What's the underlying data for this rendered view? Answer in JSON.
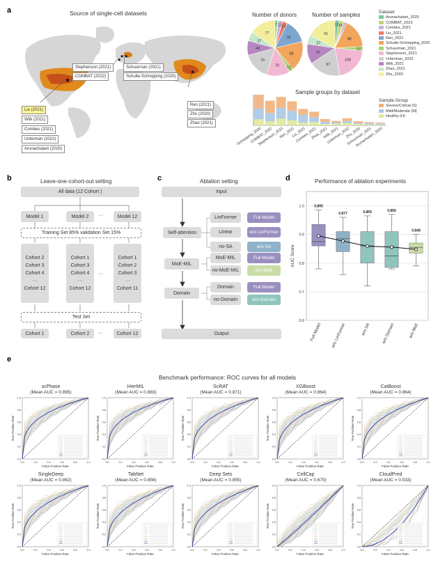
{
  "panel_labels": {
    "a": "a",
    "b": "b",
    "c": "c",
    "d": "d",
    "e": "e"
  },
  "panel_a": {
    "map_title": "Source of single-cell datasets",
    "map_boxes": {
      "us": [
        "Liu (2021)",
        "Wilk (2021)",
        "Combes (2021)",
        "Unterman (2022)",
        "Arunachalam (2020)"
      ],
      "eu_left": [
        "Stephenson (2021)",
        "COMBAT (2022)"
      ],
      "eu_right": [
        "Schuurman (2021)",
        "Schulte-Schrepping (2020)"
      ],
      "cn": [
        "Ren (2021)",
        "Zhu (2020)",
        "Zhao (2021)"
      ]
    },
    "donors_title": "Number of donors",
    "samples_title": "Number of samples",
    "legend_title": "Dataset",
    "datasets": [
      {
        "name": "Arunachalam_2020",
        "color": "#76c7a3"
      },
      {
        "name": "COMBAT_2022",
        "color": "#c9d27a"
      },
      {
        "name": "Combes_2021",
        "color": "#c4b3dd"
      },
      {
        "name": "Liu_2021",
        "color": "#ee7a6b"
      },
      {
        "name": "Ren_2021",
        "color": "#7ea6cf"
      },
      {
        "name": "Schulte-Schrepping_2020",
        "color": "#f3a55c"
      },
      {
        "name": "Schuurman_2021",
        "color": "#a9d36e"
      },
      {
        "name": "Stephenson_2021",
        "color": "#f2b8d3"
      },
      {
        "name": "Unterman_2022",
        "color": "#cfcfcf"
      },
      {
        "name": "Wilk_2021",
        "color": "#b787c1"
      },
      {
        "name": "Zhao_2021",
        "color": "#c6e7ca"
      },
      {
        "name": "Zhu_2020",
        "color": "#f2ee9b"
      }
    ],
    "donors_pie": [
      {
        "label": "7",
        "value": 7
      },
      {
        "label": "",
        "value": 3
      },
      {
        "label": "12",
        "value": 12
      },
      {
        "label": "15",
        "value": 15
      },
      {
        "label": "70",
        "value": 70
      },
      {
        "label": "88",
        "value": 88
      },
      {
        "label": "12",
        "value": 12
      },
      {
        "label": "70",
        "value": 70
      },
      {
        "label": "79",
        "value": 79
      },
      {
        "label": "43",
        "value": 43
      },
      {
        "label": "27",
        "value": 27
      },
      {
        "label": "77",
        "value": 77
      }
    ],
    "samples_pie": [
      {
        "label": "12",
        "value": 12
      },
      {
        "label": "14",
        "value": 14
      },
      {
        "label": "",
        "value": 4
      },
      {
        "label": "",
        "value": 4
      },
      {
        "label": "",
        "value": 4
      },
      {
        "label": "88",
        "value": 88
      },
      {
        "label": "12",
        "value": 12
      },
      {
        "label": "108",
        "value": 108
      },
      {
        "label": "97",
        "value": 97
      },
      {
        "label": "61",
        "value": 61
      },
      {
        "label": "27",
        "value": 27
      },
      {
        "label": "91",
        "value": 91
      }
    ],
    "bar_title": "Sample groups by dataset",
    "bar_legend_title": "Sample Group",
    "groups": [
      {
        "name": "Severe/Critical (S)",
        "color": "#f2b07a"
      },
      {
        "name": "Mild/Moderate (M)",
        "color": "#a8c8e4"
      },
      {
        "name": "Healthy (H)",
        "color": "#dfe99a"
      }
    ],
    "bar_categories": [
      "Schulte-Schrepping_2020",
      "COMBAT_2022",
      "Stephenson_2021",
      "Ren_2021",
      "Liu_2021",
      "Combes_2021",
      "Zhao_2021",
      "Wilk_2021",
      "Unterman_2022",
      "Zhu_2020",
      "Schuurman_2021",
      "Arunachalam_2020"
    ]
  },
  "chart_data": [
    {
      "type": "bar",
      "title": "Sample groups by dataset",
      "categories": [
        "Schulte-Schrepping_2020",
        "COMBAT_2022",
        "Stephenson_2021",
        "Ren_2021",
        "Liu_2021",
        "Combes_2021",
        "Zhao_2021",
        "Wilk_2021",
        "Unterman_2022",
        "Zhu_2020",
        "Schuurman_2021",
        "Arunachalam_2020"
      ],
      "series": [
        {
          "name": "Healthy (H)",
          "values": [
            22,
            15,
            24,
            18,
            10,
            12,
            5,
            6,
            8,
            5,
            3,
            3
          ]
        },
        {
          "name": "Mild/Moderate (M)",
          "values": [
            40,
            30,
            40,
            35,
            28,
            18,
            8,
            4,
            8,
            4,
            5,
            4
          ]
        },
        {
          "name": "Severe/Critical (S)",
          "values": [
            50,
            45,
            40,
            35,
            22,
            20,
            10,
            6,
            10,
            6,
            4,
            3
          ]
        }
      ]
    },
    {
      "type": "box",
      "title": "Performance of ablation experiments",
      "ylabel": "AUC Score",
      "ylim": [
        0.6,
        1.05
      ],
      "yticks": [
        "0.6",
        "0.7",
        "0.8",
        "0.9",
        "1.0"
      ],
      "categories": [
        "Full Model",
        "w/o LinFormer",
        "w/o SA",
        "w/o Domain",
        "w/o MoE"
      ],
      "means": [
        0.895,
        0.877,
        0.859,
        0.856,
        0.848
      ],
      "mean_labels": [
        "0.895",
        "0.877",
        "0.859",
        "0.856",
        "0.848"
      ],
      "colors": [
        "#9b8fc0",
        "#8fb2c9",
        "#8fc5bd",
        "#8fc5bd",
        "#c9dca6"
      ],
      "boxes": [
        {
          "min": 0.78,
          "q1": 0.86,
          "median": 0.875,
          "q3": 0.935,
          "max": 0.985
        },
        {
          "min": 0.76,
          "q1": 0.84,
          "median": 0.885,
          "q3": 0.91,
          "max": 0.96
        },
        {
          "min": 0.72,
          "q1": 0.8,
          "median": 0.86,
          "q3": 0.91,
          "max": 0.965
        },
        {
          "min": 0.78,
          "q1": 0.785,
          "median": 0.825,
          "q3": 0.91,
          "max": 0.97
        },
        {
          "min": 0.79,
          "q1": 0.835,
          "median": 0.855,
          "q3": 0.87,
          "max": 0.9
        }
      ]
    },
    {
      "type": "line",
      "title": "Benchmark performance: ROC curves for all models",
      "xlabel": "False Positive Rate",
      "ylabel": "True Positive Rate",
      "models": [
        {
          "name": "scPhase",
          "auc_label": "(Mean AUC = 0.895)",
          "auc": 0.895
        },
        {
          "name": "HierMIL",
          "auc_label": "(Mean AUC = 0.883)",
          "auc": 0.883
        },
        {
          "name": "ScRAT",
          "auc_label": "(Mean AUC = 0.871)",
          "auc": 0.871
        },
        {
          "name": "XGBoost",
          "auc_label": "(Mean AUC = 0.864)",
          "auc": 0.864
        },
        {
          "name": "CatBoost",
          "auc_label": "(Mean AUC = 0.864)",
          "auc": 0.864
        },
        {
          "name": "SingleDeep",
          "auc_label": "(Mean AUC = 0.862)",
          "auc": 0.862
        },
        {
          "name": "TabNet",
          "auc_label": "(Mean AUC = 0.856)",
          "auc": 0.856
        },
        {
          "name": "Deep Sets",
          "auc_label": "(Mean AUC = 0.855)",
          "auc": 0.855
        },
        {
          "name": "CellCap",
          "auc_label": "(Mean AUC = 0.670)",
          "auc": 0.67
        },
        {
          "name": "CloudPred",
          "auc_label": "(Mean AUC = 0.533)",
          "auc": 0.533
        }
      ],
      "ticks": [
        "0.0",
        "0.2",
        "0.4",
        "0.6",
        "0.8",
        "1.0"
      ]
    }
  ],
  "panel_b": {
    "title": "Leave-one-cohort-out setting",
    "all_data": "All data (12 Cohort )",
    "models": [
      "Model 1",
      "Model 2",
      "···",
      "Model 12"
    ],
    "split": "Training Set  85%   validation Set 15%",
    "cols": [
      [
        "Cohort 2",
        "Cohort 3",
        "Cohort 4",
        "···",
        "Cohort 12"
      ],
      [
        "Cohort 1",
        "Cohort 3",
        "Cohort 4",
        "···",
        "Cohort 12"
      ],
      [
        "Cohort 1",
        "Cohort 2",
        "Cohort 3",
        "···",
        "Cohort 11"
      ]
    ],
    "dots": "···",
    "test_set": "Test Set",
    "test_cohorts": [
      "Cohort 1",
      "Cohort 2",
      "···",
      "Cohort 12"
    ]
  },
  "panel_c": {
    "title": "Ablation setting",
    "input": "Input",
    "self_attention": "Self-attention",
    "moe": "MoE-MIL",
    "domain": "Domain",
    "output": "Output",
    "options": [
      "LinFormer",
      "Linear",
      "no-SA",
      "MoE-MIL",
      "no-MoE-MIL",
      "Domain",
      "no-Domain"
    ],
    "tags": [
      "Full Model",
      "w/o LinFormer",
      "w/o SA",
      "Full Model",
      "w/o MoE",
      "Full Model",
      "w/o Domain"
    ],
    "tag_colors": [
      "#9b8fc0",
      "#9b8fc0",
      "#8fb2c9",
      "#9b8fc0",
      "#c9dca6",
      "#9b8fc0",
      "#8fc5bd"
    ]
  }
}
